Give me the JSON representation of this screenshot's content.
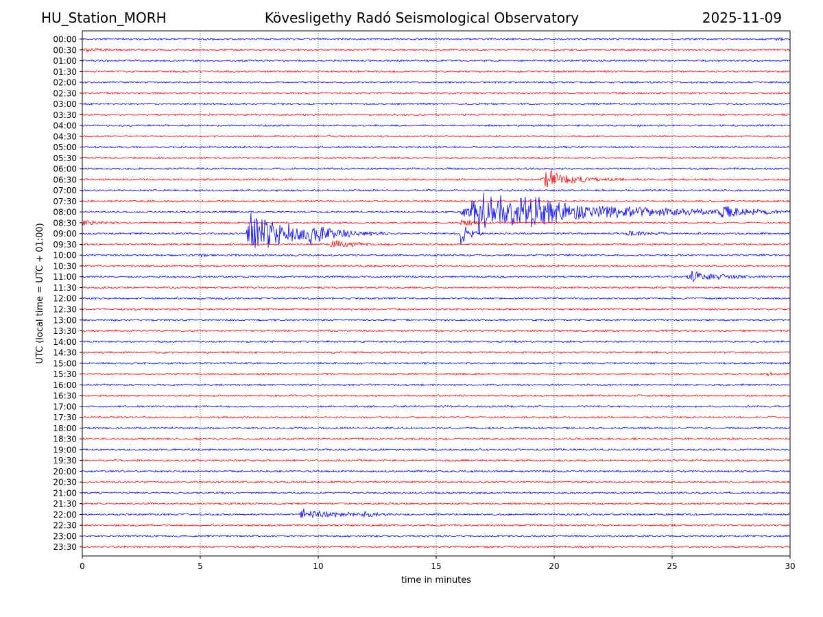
{
  "header": {
    "station": "HU_Station_MORH",
    "observatory": "Kövesligethy Radó Seismological Observatory",
    "date": "2025-11-09"
  },
  "colors": {
    "trace_a": "#0000ff",
    "trace_b": "#ff0000",
    "grid": "#000000",
    "background": "#ffffff"
  },
  "chart_data": {
    "type": "line",
    "xlabel": "time in minutes",
    "ylabel": "UTC (local time = UTC + 01:00)",
    "xlim": [
      0,
      30
    ],
    "xticks": [
      "0",
      "5",
      "10",
      "15",
      "20",
      "25",
      "30"
    ],
    "grid": "vertical dotted lines at x ticks",
    "rows": [
      "00:00",
      "00:30",
      "01:00",
      "01:30",
      "02:00",
      "02:30",
      "03:00",
      "03:30",
      "04:00",
      "04:30",
      "05:00",
      "05:30",
      "06:00",
      "06:30",
      "07:00",
      "07:30",
      "08:00",
      "08:30",
      "09:00",
      "09:30",
      "10:00",
      "10:30",
      "11:00",
      "11:30",
      "12:00",
      "12:30",
      "13:00",
      "13:30",
      "14:00",
      "14:30",
      "15:00",
      "15:30",
      "16:00",
      "16:30",
      "17:00",
      "17:30",
      "18:00",
      "18:30",
      "19:00",
      "19:30",
      "20:00",
      "20:30",
      "21:00",
      "21:30",
      "22:00",
      "22:30",
      "23:00",
      "23:30"
    ],
    "row_colors": [
      "blue",
      "red"
    ],
    "events": [
      {
        "row": "00:00",
        "start": 29.3,
        "end": 30,
        "amplitude": 0.4
      },
      {
        "row": "00:30",
        "start": 0,
        "end": 3.5,
        "amplitude": 0.2
      },
      {
        "row": "06:30",
        "start": 19.5,
        "end": 23,
        "amplitude": 1.6
      },
      {
        "row": "08:00",
        "start": 16,
        "end": 30,
        "amplitude": 3.5
      },
      {
        "row": "08:00",
        "start": 19,
        "end": 20,
        "amplitude": 2.2
      },
      {
        "row": "08:00",
        "start": 27,
        "end": 29,
        "amplitude": 0.9
      },
      {
        "row": "08:30",
        "start": 0,
        "end": 1.6,
        "amplitude": 0.5
      },
      {
        "row": "08:30",
        "start": 16,
        "end": 18,
        "amplitude": 0.6
      },
      {
        "row": "09:00",
        "start": 6.9,
        "end": 13,
        "amplitude": 3.2
      },
      {
        "row": "09:00",
        "start": 9.6,
        "end": 11.5,
        "amplitude": 1.2
      },
      {
        "row": "09:00",
        "start": 16,
        "end": 17,
        "amplitude": 2.5
      },
      {
        "row": "09:00",
        "start": 23,
        "end": 25,
        "amplitude": 0.6
      },
      {
        "row": "09:30",
        "start": 10.5,
        "end": 13,
        "amplitude": 0.7
      },
      {
        "row": "10:00",
        "start": 5,
        "end": 5.7,
        "amplitude": 0.3
      },
      {
        "row": "11:00",
        "start": 25.6,
        "end": 29,
        "amplitude": 1.1
      },
      {
        "row": "15:30",
        "start": 29,
        "end": 30,
        "amplitude": 0.2
      },
      {
        "row": "22:00",
        "start": 9.1,
        "end": 14,
        "amplitude": 0.8
      },
      {
        "row": "22:00",
        "start": 11.9,
        "end": 13,
        "amplitude": 0.4
      }
    ]
  }
}
